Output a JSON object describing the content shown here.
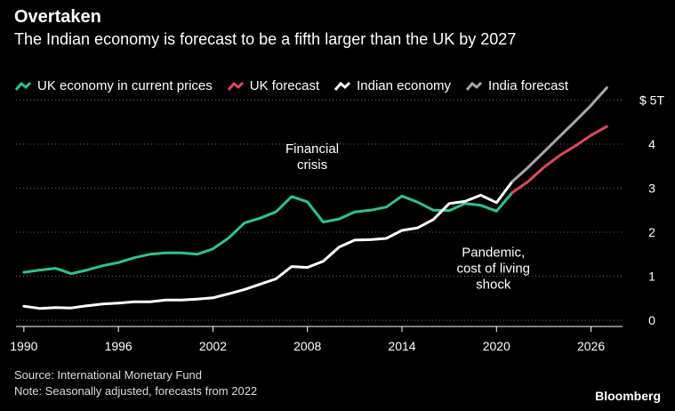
{
  "header": {
    "title": "Overtaken",
    "subtitle": "The Indian economy is forecast to be a fifth larger than the UK by 2027"
  },
  "legend": [
    {
      "label": "UK economy in current prices",
      "color": "#2bc48a"
    },
    {
      "label": "UK forecast",
      "color": "#e0475b"
    },
    {
      "label": "Indian economy",
      "color": "#ffffff"
    },
    {
      "label": "India forecast",
      "color": "#a8a8a8"
    }
  ],
  "footer": {
    "source": "Source: International Monetary Fund",
    "note": "Note: Seasonally adjusted, forecasts from 2022",
    "brand": "Bloomberg"
  },
  "chart_data": {
    "type": "line",
    "xlim": [
      1989.5,
      2028
    ],
    "ylim": [
      -0.1,
      5.05
    ],
    "x_ticks": [
      1990,
      1996,
      2002,
      2008,
      2014,
      2020,
      2026
    ],
    "y_ticks": [
      {
        "value": 0,
        "label": "0"
      },
      {
        "value": 1,
        "label": "1"
      },
      {
        "value": 2,
        "label": "2"
      },
      {
        "value": 3,
        "label": "3"
      },
      {
        "value": 4,
        "label": "4"
      },
      {
        "value": 5,
        "label": "$ 5T"
      }
    ],
    "grid": "horizontal-dotted",
    "annotations": [
      {
        "lines": [
          "Financial",
          "crisis"
        ],
        "x": 2008.3,
        "y": 3.8
      },
      {
        "lines": [
          "Pandemic,",
          "cost of living",
          "shock"
        ],
        "x": 2019.8,
        "y": 1.45
      }
    ],
    "series": [
      {
        "name": "UK economy in current prices",
        "color": "#2bc48a",
        "x": [
          1990,
          1991,
          1992,
          1993,
          1994,
          1995,
          1996,
          1997,
          1998,
          1999,
          2000,
          2001,
          2002,
          2003,
          2004,
          2005,
          2006,
          2007,
          2008,
          2009,
          2010,
          2011,
          2012,
          2013,
          2014,
          2015,
          2016,
          2017,
          2018,
          2019,
          2020,
          2021
        ],
        "y": [
          1.09,
          1.14,
          1.18,
          1.06,
          1.14,
          1.24,
          1.31,
          1.42,
          1.5,
          1.53,
          1.53,
          1.5,
          1.62,
          1.87,
          2.21,
          2.32,
          2.46,
          2.81,
          2.69,
          2.23,
          2.3,
          2.46,
          2.5,
          2.57,
          2.82,
          2.68,
          2.5,
          2.49,
          2.65,
          2.61,
          2.48,
          2.9
        ]
      },
      {
        "name": "UK forecast",
        "color": "#e0475b",
        "x": [
          2021,
          2022,
          2023,
          2024,
          2025,
          2026,
          2027
        ],
        "y": [
          2.9,
          3.15,
          3.47,
          3.74,
          3.96,
          4.2,
          4.4
        ]
      },
      {
        "name": "Indian economy",
        "color": "#ffffff",
        "x": [
          1990,
          1991,
          1992,
          1993,
          1994,
          1995,
          1996,
          1997,
          1998,
          1999,
          2000,
          2001,
          2002,
          2003,
          2004,
          2005,
          2006,
          2007,
          2008,
          2009,
          2010,
          2011,
          2012,
          2013,
          2014,
          2015,
          2016,
          2017,
          2018,
          2019,
          2020,
          2021
        ],
        "y": [
          0.32,
          0.27,
          0.29,
          0.28,
          0.33,
          0.37,
          0.39,
          0.42,
          0.42,
          0.46,
          0.46,
          0.48,
          0.51,
          0.6,
          0.7,
          0.82,
          0.94,
          1.22,
          1.2,
          1.34,
          1.66,
          1.82,
          1.83,
          1.86,
          2.04,
          2.1,
          2.29,
          2.65,
          2.7,
          2.84,
          2.67,
          3.15
        ]
      },
      {
        "name": "India forecast",
        "color": "#a8a8a8",
        "x": [
          2021,
          2022,
          2023,
          2024,
          2025,
          2026,
          2027
        ],
        "y": [
          3.15,
          3.47,
          3.82,
          4.17,
          4.52,
          4.88,
          5.28
        ]
      }
    ]
  }
}
